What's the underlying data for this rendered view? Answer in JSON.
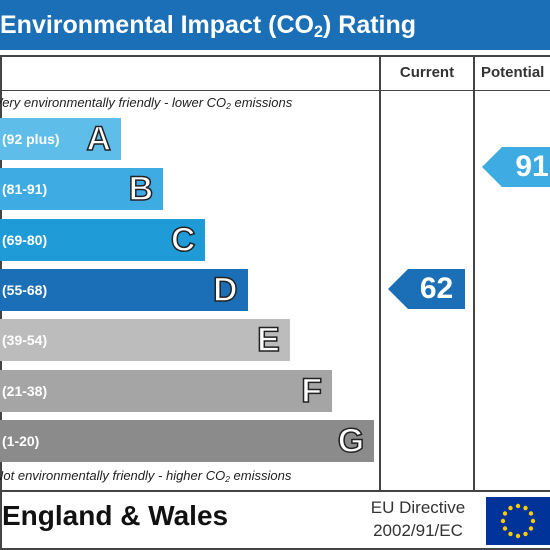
{
  "header": {
    "title": [
      "Environmental Impact (CO",
      "2",
      ") Rating"
    ]
  },
  "columns": {
    "current": "Current",
    "potential": "Potential"
  },
  "top_note": [
    "Very environmentally friendly - lower CO",
    "2",
    " emissions"
  ],
  "bottom_note": [
    "Not environmentally friendly - higher CO",
    "2",
    " emissions"
  ],
  "bands": [
    {
      "range": "(92 plus)",
      "letter": "A",
      "color": "#5fbde9"
    },
    {
      "range": "(81-91)",
      "letter": "B",
      "color": "#3eabe2"
    },
    {
      "range": "(69-80)",
      "letter": "C",
      "color": "#1f9bd7"
    },
    {
      "range": "(55-68)",
      "letter": "D",
      "color": "#1b6fb6"
    },
    {
      "range": "(39-54)",
      "letter": "E",
      "color": "#bcbcbc"
    },
    {
      "range": "(21-38)",
      "letter": "F",
      "color": "#a5a5a5"
    },
    {
      "range": "(1-20)",
      "letter": "G",
      "color": "#8b8b8b"
    }
  ],
  "ratings": {
    "current": {
      "value": 62,
      "color": "#1b6fb6"
    },
    "potential": {
      "value": 91,
      "color": "#3eabe2"
    }
  },
  "footer": {
    "region": "England & Wales",
    "directive": [
      "EU Directive",
      "2002/91/EC"
    ]
  }
}
